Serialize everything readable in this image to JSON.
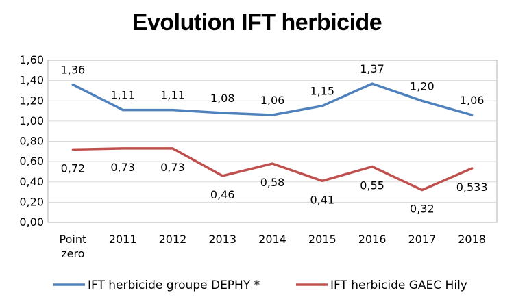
{
  "chart_data": {
    "type": "line",
    "title": "Evolution IFT herbicide",
    "categories": [
      [
        "Point",
        "zero"
      ],
      [
        "2011"
      ],
      [
        "2012"
      ],
      [
        "2013"
      ],
      [
        "2014"
      ],
      [
        "2015"
      ],
      [
        "2016"
      ],
      [
        "2017"
      ],
      [
        "2018"
      ]
    ],
    "y_ticks": [
      "0,00",
      "0,20",
      "0,40",
      "0,60",
      "0,80",
      "1,00",
      "1,20",
      "1,40",
      "1,60"
    ],
    "ylim": [
      0,
      1.6
    ],
    "y_step": 0.2,
    "grid": true,
    "legend_position": "bottom",
    "series": [
      {
        "name": "IFT herbicide groupe DEPHY *",
        "color": "#4F81BD",
        "values": [
          1.36,
          1.11,
          1.11,
          1.08,
          1.06,
          1.15,
          1.37,
          1.2,
          1.06
        ],
        "labels": [
          "1,36",
          "1,11",
          "1,11",
          "1,08",
          "1,06",
          "1,15",
          "1,37",
          "1,20",
          "1,06"
        ],
        "label_position": "above"
      },
      {
        "name": "IFT herbicide GAEC Hily",
        "color": "#C0504D",
        "values": [
          0.72,
          0.73,
          0.73,
          0.46,
          0.58,
          0.41,
          0.55,
          0.32,
          0.533
        ],
        "labels": [
          "0,72",
          "0,73",
          "0,73",
          "0,46",
          "0,58",
          "0,41",
          "0,55",
          "0,32",
          "0,533"
        ],
        "label_position": "below"
      }
    ]
  }
}
